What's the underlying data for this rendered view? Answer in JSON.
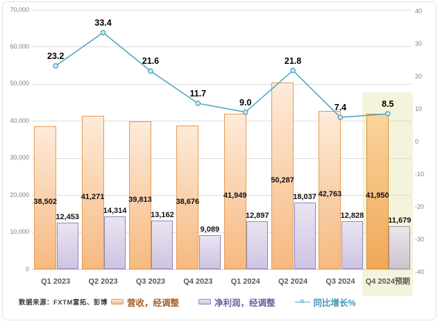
{
  "chart_data": {
    "type": "combo",
    "categories": [
      "Q1 2023",
      "Q2 2023",
      "Q3 2023",
      "Q4 2023",
      "Q1 2024",
      "Q2 2024",
      "Q3 2024",
      "Q4 2024预期"
    ],
    "series": [
      {
        "name": "营收，经调整",
        "type": "bar",
        "axis": "left",
        "values": [
          38502,
          41271,
          39813,
          38676,
          41949,
          50287,
          42763,
          41950
        ],
        "labels": [
          "38,502",
          "41,271",
          "39,813",
          "38,676",
          "41,949",
          "50,287",
          "42,763",
          "41,950"
        ]
      },
      {
        "name": "净利润，经调整",
        "type": "bar",
        "axis": "left",
        "values": [
          12453,
          14314,
          13162,
          9089,
          12897,
          18037,
          12828,
          11679
        ],
        "labels": [
          "12,453",
          "14,314",
          "13,162",
          "9,089",
          "12,897",
          "18,037",
          "12,828",
          "11,679"
        ]
      },
      {
        "name": "同比增长%",
        "type": "line",
        "axis": "right",
        "values": [
          23.2,
          33.4,
          21.6,
          11.7,
          9.0,
          21.8,
          7.4,
          8.5
        ],
        "labels": [
          "23.2",
          "33.4",
          "21.6",
          "11.7",
          "9.0",
          "21.8",
          "7.4",
          "8.5"
        ]
      }
    ],
    "left_axis": {
      "min": 0,
      "max": 70000,
      "tick_step": 10000,
      "tick_labels": [
        "0",
        "10,000",
        "20,000",
        "30,000",
        "40,000",
        "50,000",
        "60,000",
        "70,000"
      ]
    },
    "right_axis": {
      "min": -40,
      "max": 40,
      "tick_step": 10,
      "tick_labels": [
        "-40",
        "-30",
        "-20",
        "-10",
        "0",
        "10",
        "20",
        "30",
        "40"
      ]
    },
    "highlight": {
      "category_index": 7,
      "label": "Q4 2024预期"
    },
    "grid": true,
    "legend_position": "bottom"
  },
  "source_note": "数据来源：FXTM富拓、彭博",
  "colors": {
    "revenue_border": "#E8994F",
    "revenue_fill_top": "#FDEBDA",
    "revenue_fill_bottom": "#F6B980",
    "revenue_forecast_border": "#DB8F33",
    "revenue_forecast_fill_top": "#FAD49D",
    "revenue_forecast_fill_bottom": "#F0A858",
    "profit_border": "#9183BE",
    "profit_fill_top": "#EAE4F2",
    "profit_fill_bottom": "#CEC4E2",
    "profit_forecast_border": "#9C92A2",
    "profit_forecast_fill_top": "#EBE6EB",
    "profit_forecast_fill_bottom": "#CDC3CD",
    "line": "#4FA7C3",
    "marker_fill": "#CFEAF3",
    "highlight_band": "#F4F4DC",
    "gridline": "#DCDCDC",
    "legend_revenue_text": "#A35F28",
    "legend_profit_text": "#6E5FA0",
    "legend_line_text": "#3F96B4"
  }
}
